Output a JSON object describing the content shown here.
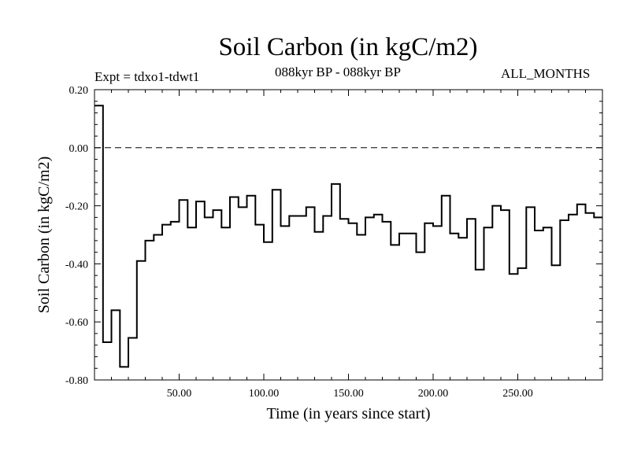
{
  "header": {
    "title": "Soil Carbon (in kgC/m2)",
    "expt": "Expt = tdxo1-tdwt1",
    "period": "088kyr BP - 088kyr BP",
    "months": "ALL_MONTHS"
  },
  "chart_data": {
    "type": "line",
    "style": "step",
    "title": "Soil Carbon (in kgC/m2)",
    "xlabel": "Time (in years since start)",
    "ylabel": "Soil Carbon (in kgC/m2)",
    "xlim": [
      0,
      300
    ],
    "ylim": [
      -0.8,
      0.2
    ],
    "x_ticks": [
      50,
      100,
      150,
      200,
      250
    ],
    "x_tick_labels": [
      "50.00",
      "100.00",
      "150.00",
      "200.00",
      "250.00"
    ],
    "y_ticks": [
      0.2,
      0.0,
      -0.2,
      -0.4,
      -0.6,
      -0.8
    ],
    "y_tick_labels": [
      "0.20",
      "0.00",
      "-0.20",
      "-0.40",
      "-0.60",
      "-0.80"
    ],
    "reference_line": {
      "y": 0.0,
      "style": "dashed"
    },
    "grid": false,
    "series": [
      {
        "x_start": 0,
        "step": 5,
        "values": [
          0.145,
          -0.67,
          -0.56,
          -0.755,
          -0.655,
          -0.39,
          -0.32,
          -0.3,
          -0.265,
          -0.255,
          -0.18,
          -0.275,
          -0.185,
          -0.24,
          -0.215,
          -0.275,
          -0.17,
          -0.205,
          -0.165,
          -0.265,
          -0.325,
          -0.145,
          -0.27,
          -0.235,
          -0.235,
          -0.205,
          -0.29,
          -0.235,
          -0.125,
          -0.245,
          -0.26,
          -0.3,
          -0.24,
          -0.23,
          -0.255,
          -0.335,
          -0.295,
          -0.295,
          -0.36,
          -0.26,
          -0.27,
          -0.165,
          -0.295,
          -0.31,
          -0.245,
          -0.42,
          -0.275,
          -0.2,
          -0.215,
          -0.435,
          -0.415,
          -0.205,
          -0.285,
          -0.275,
          -0.405,
          -0.25,
          -0.23,
          -0.195,
          -0.225,
          -0.24
        ]
      }
    ]
  }
}
